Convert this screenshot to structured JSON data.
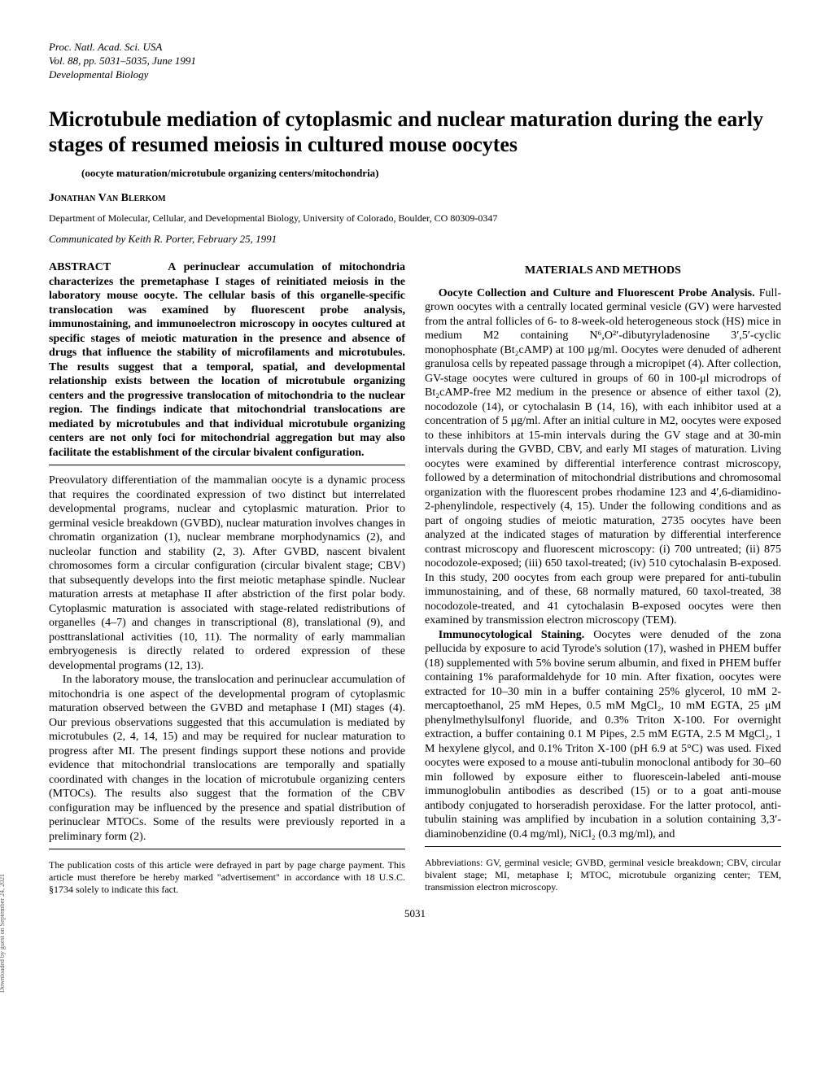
{
  "journal": {
    "line1": "Proc. Natl. Acad. Sci. USA",
    "line2": "Vol. 88, pp. 5031–5035, June 1991",
    "line3": "Developmental Biology"
  },
  "title": "Microtubule mediation of cytoplasmic and nuclear maturation during the early stages of resumed meiosis in cultured mouse oocytes",
  "subtitle": "(oocyte maturation/microtubule organizing centers/mitochondria)",
  "author": "Jonathan Van Blerkom",
  "affiliation": "Department of Molecular, Cellular, and Developmental Biology, University of Colorado, Boulder, CO 80309-0347",
  "communicated": "Communicated by Keith R. Porter, February 25, 1991",
  "abstract": {
    "label": "ABSTRACT",
    "text": "A perinuclear accumulation of mitochondria characterizes the premetaphase I stages of reinitiated meiosis in the laboratory mouse oocyte. The cellular basis of this organelle-specific translocation was examined by fluorescent probe analysis, immunostaining, and immunoelectron microscopy in oocytes cultured at specific stages of meiotic maturation in the presence and absence of drugs that influence the stability of microfilaments and microtubules. The results suggest that a temporal, spatial, and developmental relationship exists between the location of microtubule organizing centers and the progressive translocation of mitochondria to the nuclear region. The findings indicate that mitochondrial translocations are mediated by microtubules and that individual microtubule organizing centers are not only foci for mitochondrial aggregation but may also facilitate the establishment of the circular bivalent configuration."
  },
  "intro": {
    "p1": "Preovulatory differentiation of the mammalian oocyte is a dynamic process that requires the coordinated expression of two distinct but interrelated developmental programs, nuclear and cytoplasmic maturation. Prior to germinal vesicle breakdown (GVBD), nuclear maturation involves changes in chromatin organization (1), nuclear membrane morphodynamics (2), and nucleolar function and stability (2, 3). After GVBD, nascent bivalent chromosomes form a circular configuration (circular bivalent stage; CBV) that subsequently develops into the first meiotic metaphase spindle. Nuclear maturation arrests at metaphase II after abstriction of the first polar body. Cytoplasmic maturation is associated with stage-related redistributions of organelles (4–7) and changes in transcriptional (8), translational (9), and posttranslational activities (10, 11). The normality of early mammalian embryogenesis is directly related to ordered expression of these developmental programs (12, 13).",
    "p2": "In the laboratory mouse, the translocation and perinuclear accumulation of mitochondria is one aspect of the developmental program of cytoplasmic maturation observed between the GVBD and metaphase I (MI) stages (4). Our previous observations suggested that this accumulation is mediated by microtubules (2, 4, 14, 15) and may be required for nuclear maturation to progress after MI. The present findings support these notions and provide evidence that mitochondrial translocations are temporally and spatially coordinated with changes in the location of microtubule organizing centers (MTOCs). The results also suggest that the formation of the CBV configuration may be influenced by the presence and spatial distribution of perinuclear MTOCs. Some of the results were previously reported in a preliminary form (2)."
  },
  "methods": {
    "heading": "MATERIALS AND METHODS",
    "p1_heading": "Oocyte Collection and Culture and Fluorescent Probe Analysis.",
    "p1": " Full-grown oocytes with a centrally located germinal vesicle (GV) were harvested from the antral follicles of 6- to 8-week-old heterogeneous stock (HS) mice in medium M2 containing N⁶,O²′-dibutyryladenosine 3′,5′-cyclic monophosphate (Bt₂cAMP) at 100 μg/ml. Oocytes were denuded of adherent granulosa cells by repeated passage through a micropipet (4). After collection, GV-stage oocytes were cultured in groups of 60 in 100-μl microdrops of Bt₂cAMP-free M2 medium in the presence or absence of either taxol (2), nocodozole (14), or cytochalasin B (14, 16), with each inhibitor used at a concentration of 5 μg/ml. After an initial culture in M2, oocytes were exposed to these inhibitors at 15-min intervals during the GV stage and at 30-min intervals during the GVBD, CBV, and early MI stages of maturation. Living oocytes were examined by differential interference contrast microscopy, followed by a determination of mitochondrial distributions and chromosomal organization with the fluorescent probes rhodamine 123 and 4′,6-diamidino-2-phenylindole, respectively (4, 15). Under the following conditions and as part of ongoing studies of meiotic maturation, 2735 oocytes have been analyzed at the indicated stages of maturation by differential interference contrast microscopy and fluorescent microscopy: (i) 700 untreated; (ii) 875 nocodozole-exposed; (iii) 650 taxol-treated; (iv) 510 cytochalasin B-exposed. In this study, 200 oocytes from each group were prepared for anti-tubulin immunostaining, and of these, 68 normally matured, 60 taxol-treated, 38 nocodozole-treated, and 41 cytochalasin B-exposed oocytes were then examined by transmission electron microscopy (TEM).",
    "p2_heading": "Immunocytological Staining.",
    "p2": " Oocytes were denuded of the zona pellucida by exposure to acid Tyrode's solution (17), washed in PHEM buffer (18) supplemented with 5% bovine serum albumin, and fixed in PHEM buffer containing 1% paraformaldehyde for 10 min. After fixation, oocytes were extracted for 10–30 min in a buffer containing 25% glycerol, 10 mM 2-mercaptoethanol, 25 mM Hepes, 0.5 mM MgCl₂, 10 mM EGTA, 25 μM phenylmethylsulfonyl fluoride, and 0.3% Triton X-100. For overnight extraction, a buffer containing 0.1 M Pipes, 2.5 mM EGTA, 2.5 M MgCl₂, 1 M hexylene glycol, and 0.1% Triton X-100 (pH 6.9 at 5°C) was used. Fixed oocytes were exposed to a mouse anti-tubulin monoclonal antibody for 30–60 min followed by exposure either to fluorescein-labeled anti-mouse immunoglobulin antibodies as described (15) or to a goat anti-mouse antibody conjugated to horseradish peroxidase. For the latter protocol, anti-tubulin staining was amplified by incubation in a solution containing 3,3′-diaminobenzidine (0.4 mg/ml), NiCl₂ (0.3 mg/ml), and"
  },
  "footnotes": {
    "left": "The publication costs of this article were defrayed in part by page charge payment. This article must therefore be hereby marked \"advertisement\" in accordance with 18 U.S.C. §1734 solely to indicate this fact.",
    "right": "Abbreviations: GV, germinal vesicle; GVBD, germinal vesicle breakdown; CBV, circular bivalent stage; MI, metaphase I; MTOC, microtubule organizing center; TEM, transmission electron microscopy."
  },
  "page_number": "5031",
  "side_text": "Downloaded by guest on September 24, 2021"
}
